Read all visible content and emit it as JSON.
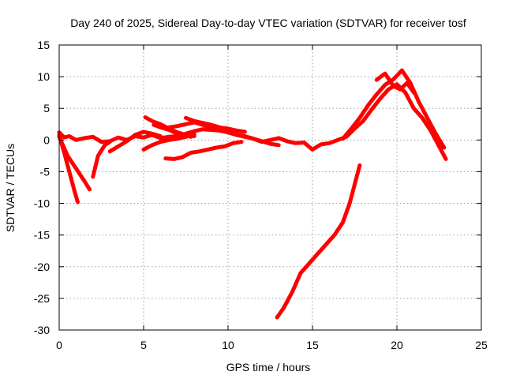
{
  "chart_data": {
    "type": "line",
    "title": "Day 240 of 2025, Sidereal Day-to-day VTEC variation (SDTVAR) for receiver tosf",
    "xlabel": "GPS time / hours",
    "ylabel": "SDTVAR / TECUs",
    "xlim": [
      0,
      25
    ],
    "ylim": [
      -30,
      15
    ],
    "xticks": [
      0,
      5,
      10,
      15,
      20,
      25
    ],
    "yticks": [
      -30,
      -25,
      -20,
      -15,
      -10,
      -5,
      0,
      5,
      10,
      15
    ],
    "xtick_labels": [
      "0",
      "5",
      "10",
      "15",
      "20",
      "25"
    ],
    "ytick_labels": [
      "-30",
      "-25",
      "-20",
      "-15",
      "-10",
      "-5",
      "0",
      "5",
      "10",
      "15"
    ],
    "grid": true,
    "legend": "none",
    "color": "#ff0000",
    "series": [
      {
        "name": "track-1",
        "x": [
          0.0,
          0.3,
          0.6,
          1.0,
          1.5,
          2.0,
          2.5,
          3.0,
          3.5,
          4.0,
          4.5,
          5.0,
          5.5,
          6.0,
          6.5,
          7.0,
          7.5,
          8.0,
          8.5,
          9.0,
          9.5,
          10.0,
          10.5,
          11.0,
          11.5,
          12.0,
          12.5,
          13.0,
          13.5,
          14.0,
          14.5,
          15.0,
          15.5,
          16.0,
          16.5,
          17.0,
          17.5,
          18.0,
          18.5,
          19.0,
          19.5,
          20.0,
          20.5,
          21.0,
          21.5,
          22.0,
          22.5,
          22.9
        ],
        "y": [
          1.2,
          0.4,
          0.6,
          0.0,
          0.3,
          0.5,
          -0.3,
          -0.2,
          0.4,
          0.0,
          0.6,
          0.4,
          0.8,
          0.3,
          0.5,
          0.6,
          1.0,
          1.4,
          1.7,
          1.6,
          1.5,
          1.2,
          0.9,
          0.6,
          0.2,
          -0.3,
          0.0,
          0.3,
          -0.2,
          -0.5,
          -0.4,
          -1.5,
          -0.7,
          -0.5,
          0.0,
          0.5,
          1.8,
          3.0,
          4.8,
          6.5,
          8.0,
          8.8,
          7.5,
          5.0,
          3.5,
          1.5,
          -1.0,
          -3.0
        ]
      },
      {
        "name": "track-2",
        "x": [
          0.0,
          0.3,
          0.6,
          0.9,
          1.1
        ],
        "y": [
          0.8,
          -2.0,
          -5.0,
          -8.0,
          -9.8
        ]
      },
      {
        "name": "track-3",
        "x": [
          0.0,
          0.5,
          1.0,
          1.5,
          1.8
        ],
        "y": [
          0.5,
          -2.5,
          -4.5,
          -6.5,
          -7.8
        ]
      },
      {
        "name": "track-4",
        "x": [
          2.0,
          2.3,
          2.7,
          3.0
        ],
        "y": [
          -5.8,
          -2.5,
          -0.8,
          -0.3
        ]
      },
      {
        "name": "track-5",
        "x": [
          3.0,
          3.5,
          4.0,
          4.5,
          5.0,
          5.5,
          6.0
        ],
        "y": [
          -1.8,
          -1.0,
          -0.2,
          0.8,
          1.3,
          1.0,
          0.6
        ]
      },
      {
        "name": "track-6",
        "x": [
          5.0,
          5.5,
          6.0,
          6.5,
          7.0,
          7.5,
          8.0
        ],
        "y": [
          -1.5,
          -0.8,
          -0.3,
          0.0,
          0.2,
          0.5,
          0.9
        ]
      },
      {
        "name": "track-7",
        "x": [
          5.1,
          5.5,
          6.0,
          6.5,
          7.0,
          7.5,
          7.8
        ],
        "y": [
          3.6,
          3.0,
          2.5,
          1.8,
          1.2,
          0.8,
          0.5
        ]
      },
      {
        "name": "track-8",
        "x": [
          5.6,
          6.0,
          6.5,
          7.0,
          7.5,
          8.0
        ],
        "y": [
          2.4,
          2.0,
          1.6,
          1.0,
          0.8,
          0.6
        ]
      },
      {
        "name": "track-9",
        "x": [
          6.5,
          7.0,
          7.5,
          8.0,
          8.5,
          9.0,
          9.5,
          10.0,
          10.5,
          11.0,
          11.5,
          12.0,
          12.5,
          13.0
        ],
        "y": [
          2.0,
          2.2,
          2.5,
          2.8,
          2.4,
          2.0,
          1.6,
          1.2,
          0.8,
          0.5,
          0.2,
          -0.2,
          -0.6,
          -0.8
        ]
      },
      {
        "name": "track-10",
        "x": [
          7.5,
          8.0,
          8.5,
          9.0,
          9.5,
          10.0,
          10.5,
          11.0
        ],
        "y": [
          3.5,
          3.0,
          2.7,
          2.4,
          2.0,
          1.8,
          1.5,
          1.3
        ]
      },
      {
        "name": "track-11",
        "x": [
          6.3,
          6.8,
          7.3,
          7.8,
          8.3,
          8.8,
          9.3,
          9.8,
          10.3,
          10.8
        ],
        "y": [
          -2.9,
          -3.0,
          -2.7,
          -2.0,
          -1.8,
          -1.5,
          -1.2,
          -1.0,
          -0.5,
          -0.3
        ]
      },
      {
        "name": "track-12",
        "x": [
          12.9,
          13.3,
          13.8,
          14.3,
          14.8,
          15.3,
          15.8,
          16.3,
          16.8,
          17.2,
          17.5,
          17.8
        ],
        "y": [
          -28.0,
          -26.5,
          -24.0,
          -21.0,
          -19.5,
          -18.0,
          -16.5,
          -15.0,
          -13.0,
          -10.0,
          -7.0,
          -4.0
        ]
      },
      {
        "name": "track-13",
        "x": [
          16.8,
          17.3,
          17.8,
          18.3,
          18.8,
          19.3,
          19.8,
          20.3,
          20.8,
          21.3,
          21.8,
          22.3,
          22.8
        ],
        "y": [
          0.2,
          1.8,
          3.5,
          5.5,
          7.2,
          8.7,
          9.6,
          11.0,
          9.0,
          6.0,
          3.5,
          1.0,
          -1.2
        ]
      },
      {
        "name": "track-14",
        "x": [
          18.8,
          19.3,
          19.8,
          20.2,
          20.6,
          21.0
        ],
        "y": [
          9.5,
          10.5,
          8.5,
          8.0,
          9.0,
          7.5
        ]
      }
    ]
  }
}
